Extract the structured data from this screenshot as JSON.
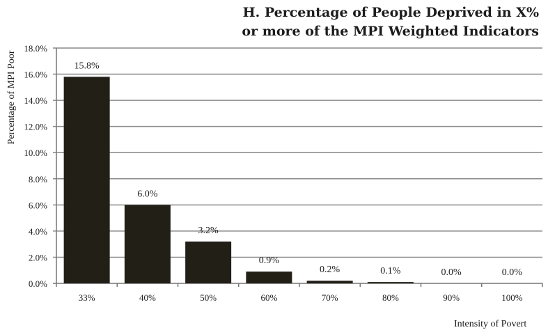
{
  "chart_data": {
    "type": "bar",
    "title_lines": [
      "H. Percentage of People Deprived in X%",
      "or more of the MPI Weighted Indicators"
    ],
    "xlabel": "Intensity of Povert",
    "ylabel": "Percentage of MPI Poor",
    "categories": [
      "33%",
      "40%",
      "50%",
      "60%",
      "70%",
      "80%",
      "90%",
      "100%"
    ],
    "values": [
      15.8,
      6.0,
      3.2,
      0.9,
      0.2,
      0.1,
      0.0,
      0.0
    ],
    "value_labels": [
      "15.8%",
      "6.0%",
      "3.2%",
      "0.9%",
      "0.2%",
      "0.1%",
      "0.0%",
      "0.0%"
    ],
    "yticks": [
      0,
      2,
      4,
      6,
      8,
      10,
      12,
      14,
      16,
      18
    ],
    "ytick_labels": [
      "0.0%",
      "2.0%",
      "4.0%",
      "6.0%",
      "8.0%",
      "10.0%",
      "12.0%",
      "14.0%",
      "16.0%",
      "18.0%"
    ],
    "ylim": [
      0,
      18
    ],
    "grid": true,
    "legend": "none",
    "bar_color": "#221f17"
  }
}
